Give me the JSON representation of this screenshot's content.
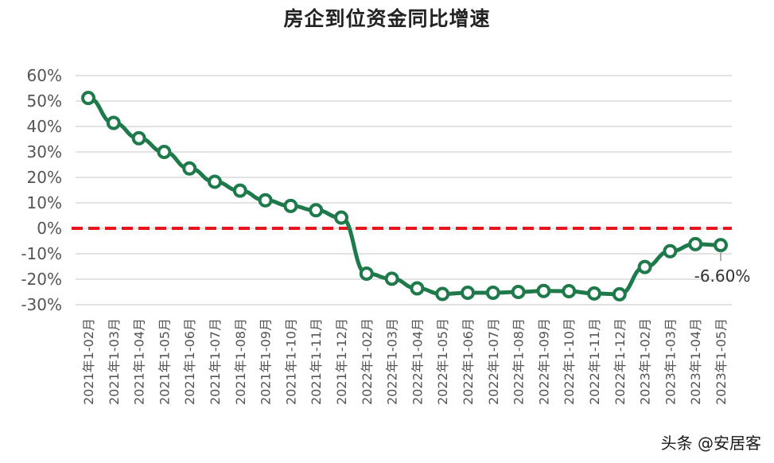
{
  "chart_data": {
    "type": "line",
    "title": "房企到位资金同比增速",
    "xlabel": "",
    "ylabel": "",
    "categories": [
      "2021年1-02月",
      "2021年1-03月",
      "2021年1-04月",
      "2021年1-05月",
      "2021年1-06月",
      "2021年1-07月",
      "2021年1-08月",
      "2021年1-09月",
      "2021年1-10月",
      "2021年1-11月",
      "2021年1-12月",
      "2022年1-02月",
      "2022年1-03月",
      "2022年1-04月",
      "2022年1-05月",
      "2022年1-06月",
      "2022年1-07月",
      "2022年1-08月",
      "2022年1-09月",
      "2022年1-10月",
      "2022年1-11月",
      "2022年1-12月",
      "2023年1-02月",
      "2023年1-03月",
      "2023年1-04月",
      "2023年1-05月"
    ],
    "series": [
      {
        "name": "",
        "color": "#1e7a4a",
        "values": [
          51.2,
          41.4,
          35.4,
          30.0,
          23.5,
          18.3,
          14.8,
          11.0,
          8.8,
          7.1,
          4.2,
          -17.8,
          -19.8,
          -23.6,
          -25.8,
          -25.3,
          -25.3,
          -25.0,
          -24.6,
          -24.7,
          -25.6,
          -25.9,
          -15.2,
          -9.0,
          -6.2,
          -6.6
        ]
      }
    ],
    "ylim": [
      -30,
      60
    ],
    "yticks": [
      60,
      50,
      40,
      30,
      20,
      10,
      0,
      -10,
      -20,
      -30
    ],
    "ytick_labels": [
      "60%",
      "50%",
      "40%",
      "30%",
      "20%",
      "10%",
      "0%",
      "-10%",
      "-20%",
      "-30%"
    ],
    "reference_line": {
      "value": 0,
      "color": "#e8141c",
      "style": "dashed"
    },
    "annotations": [
      {
        "text": "-6.60%",
        "category_index": 25
      }
    ],
    "grid": true,
    "legend": "none"
  },
  "watermark": {
    "credit": "头条 @安居客"
  }
}
